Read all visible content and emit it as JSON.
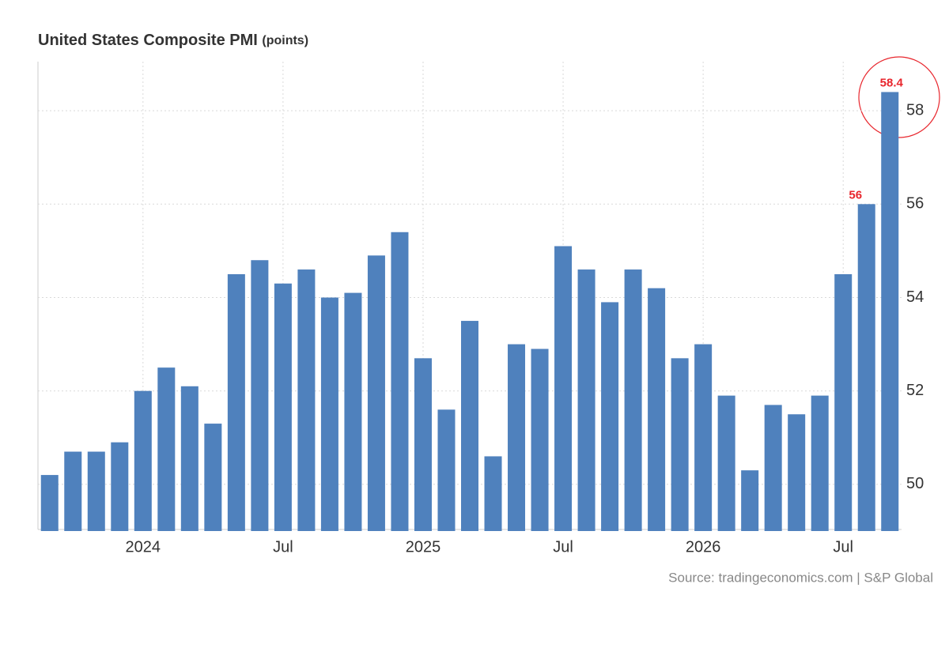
{
  "chart_data": {
    "type": "bar",
    "title": "United States Composite PMI",
    "unit": "(points)",
    "source": "Source: tradingeconomics.com | S&P Global",
    "categories": [
      null,
      null,
      null,
      null,
      "2024",
      null,
      null,
      null,
      null,
      null,
      "Jul",
      null,
      null,
      null,
      null,
      null,
      "2025",
      null,
      null,
      null,
      null,
      null,
      "Jul",
      null,
      null,
      null,
      null,
      null,
      "2026",
      null,
      null,
      null,
      null,
      null,
      "Jul",
      null,
      null
    ],
    "values": [
      50.2,
      50.7,
      50.7,
      50.9,
      52.0,
      52.5,
      52.1,
      51.3,
      54.5,
      54.8,
      54.3,
      54.6,
      54.0,
      54.1,
      54.9,
      55.4,
      52.7,
      51.6,
      53.5,
      50.6,
      53.0,
      52.9,
      55.1,
      54.6,
      53.9,
      54.6,
      54.2,
      52.7,
      53.0,
      51.9,
      50.3,
      51.7,
      51.5,
      51.9,
      54.5,
      56.0,
      58.4
    ],
    "value_labels": [
      null,
      null,
      null,
      null,
      null,
      null,
      null,
      null,
      null,
      null,
      null,
      null,
      null,
      null,
      null,
      null,
      null,
      null,
      null,
      null,
      null,
      null,
      null,
      null,
      null,
      null,
      null,
      null,
      null,
      null,
      null,
      null,
      null,
      null,
      null,
      "56",
      "58.4"
    ],
    "color": "#4f81bd",
    "label_color": "#e8262d",
    "ylim": [
      49,
      59
    ],
    "yticks": [
      50,
      52,
      54,
      56,
      58
    ],
    "grid": true
  }
}
